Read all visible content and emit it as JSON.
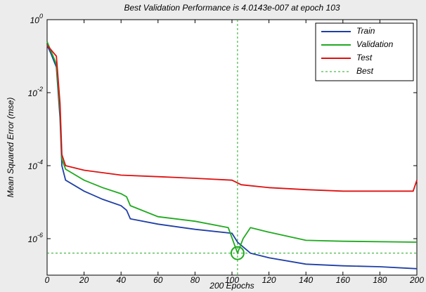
{
  "chart_data": {
    "type": "line",
    "title": "Best Validation Performance is 4.0143e-007 at epoch 103",
    "xlabel": "200 Epochs",
    "ylabel": "Mean Squared Error  (mse)",
    "xlim": [
      0,
      200
    ],
    "xticks": [
      0,
      20,
      40,
      60,
      80,
      100,
      120,
      140,
      160,
      180,
      200
    ],
    "ylim": [
      1e-07,
      1
    ],
    "log_y": true,
    "yticks": [
      {
        "value": 1,
        "label": "10^0"
      },
      {
        "value": 0.01,
        "label": "10^-2"
      },
      {
        "value": 0.0001,
        "label": "10^-4"
      },
      {
        "value": 1e-06,
        "label": "10^-6"
      }
    ],
    "legend_position": "upper right",
    "series": [
      {
        "name": "Train",
        "color": "#1f3fa6",
        "x": [
          0,
          2,
          5,
          6,
          7,
          8,
          10,
          20,
          30,
          40,
          43,
          45,
          60,
          80,
          100,
          103,
          110,
          120,
          140,
          160,
          180,
          200
        ],
        "values": [
          0.2,
          0.12,
          0.05,
          0.01,
          0.002,
          0.0001,
          4e-05,
          2e-05,
          1.2e-05,
          8e-06,
          6e-06,
          3.5e-06,
          2.5e-06,
          1.8e-06,
          1.4e-06,
          8e-07,
          4e-07,
          3e-07,
          2e-07,
          1.8e-07,
          1.7e-07,
          1.5e-07
        ]
      },
      {
        "name": "Validation",
        "color": "#1faa1f",
        "x": [
          0,
          5,
          7,
          8,
          10,
          20,
          30,
          40,
          43,
          45,
          60,
          80,
          98,
          103,
          106,
          110,
          120,
          140,
          160,
          200
        ],
        "values": [
          0.25,
          0.06,
          0.003,
          0.00015,
          8e-05,
          4e-05,
          2.5e-05,
          1.7e-05,
          1.4e-05,
          8e-06,
          4e-06,
          3e-06,
          2e-06,
          4.0143e-07,
          1e-06,
          2e-06,
          1.5e-06,
          9e-07,
          8.5e-07,
          8e-07
        ]
      },
      {
        "name": "Test",
        "color": "#e01010",
        "x": [
          0,
          5,
          7,
          8,
          10,
          20,
          40,
          60,
          80,
          100,
          105,
          120,
          140,
          160,
          180,
          198,
          200
        ],
        "values": [
          0.2,
          0.1,
          0.005,
          0.0002,
          0.0001,
          7.5e-05,
          5.5e-05,
          5e-05,
          4.5e-05,
          4e-05,
          3e-05,
          2.5e-05,
          2.2e-05,
          2e-05,
          2e-05,
          2e-05,
          4e-05
        ]
      }
    ],
    "best": {
      "name": "Best",
      "color": "#1faa1f",
      "x": 103,
      "value": 4.0143e-07
    }
  }
}
